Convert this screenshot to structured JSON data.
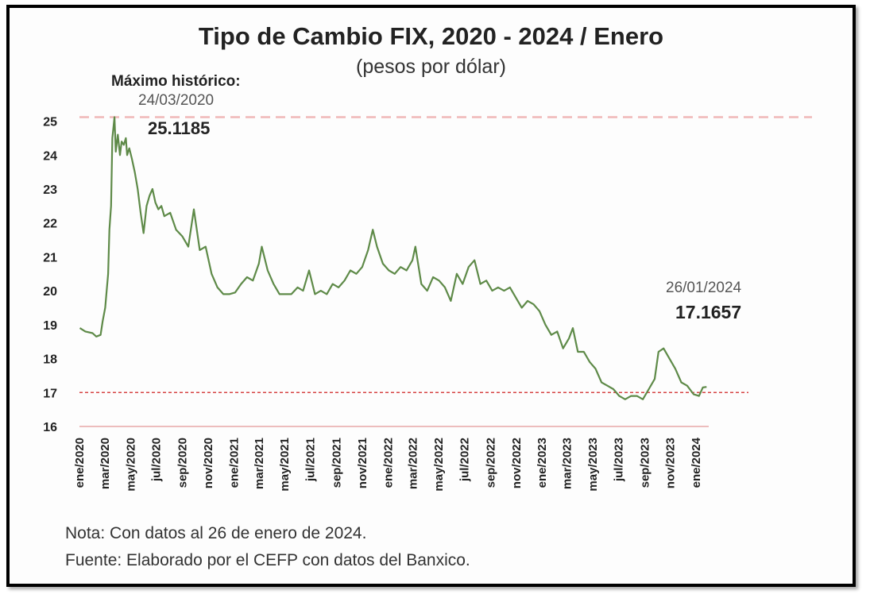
{
  "colors": {
    "line": "#5e8a48",
    "ref_line_max": "#f0b8b8",
    "ref_line_last": "#d64545",
    "baseline": "#e8a8a8"
  },
  "chart_data": {
    "type": "line",
    "title": "Tipo de Cambio FIX, 2020 - 2024 / Enero",
    "subtitle": "(pesos por dólar)",
    "ylim": [
      16,
      25.2
    ],
    "yticks": [
      16,
      17,
      18,
      19,
      20,
      21,
      22,
      23,
      24,
      25
    ],
    "x_range": [
      "2020-01-01",
      "2024-01-31"
    ],
    "xtick_labels": [
      "ene/2020",
      "mar/2020",
      "may/2020",
      "jul/2020",
      "sep/2020",
      "nov/2020",
      "ene/2021",
      "mar/2021",
      "may/2021",
      "jul/2021",
      "sep/2021",
      "nov/2021",
      "ene/2022",
      "mar/2022",
      "may/2022",
      "jul/2022",
      "sep/2022",
      "nov/2022",
      "ene/2023",
      "mar/2023",
      "may/2023",
      "jul/2023",
      "sep/2023",
      "nov/2023",
      "ene/2024"
    ],
    "xtick_dates": [
      "2020-01-01",
      "2020-03-01",
      "2020-05-01",
      "2020-07-01",
      "2020-09-01",
      "2020-11-01",
      "2021-01-01",
      "2021-03-01",
      "2021-05-01",
      "2021-07-01",
      "2021-09-01",
      "2021-11-01",
      "2022-01-01",
      "2022-03-01",
      "2022-05-01",
      "2022-07-01",
      "2022-09-01",
      "2022-11-01",
      "2023-01-01",
      "2023-03-01",
      "2023-05-01",
      "2023-07-01",
      "2023-09-01",
      "2023-11-01",
      "2024-01-01"
    ],
    "grid": false,
    "reference_lines": [
      {
        "y": 25.1185
      },
      {
        "y": 17.0
      }
    ],
    "series": [
      {
        "x": [
          "2020-01-02",
          "2020-01-15",
          "2020-02-01",
          "2020-02-10",
          "2020-02-20",
          "2020-02-25",
          "2020-03-02",
          "2020-03-09",
          "2020-03-12",
          "2020-03-16",
          "2020-03-19",
          "2020-03-24",
          "2020-03-27",
          "2020-04-01",
          "2020-04-06",
          "2020-04-10",
          "2020-04-15",
          "2020-04-20",
          "2020-04-23",
          "2020-04-28",
          "2020-05-04",
          "2020-05-11",
          "2020-05-18",
          "2020-05-25",
          "2020-06-01",
          "2020-06-08",
          "2020-06-15",
          "2020-06-22",
          "2020-06-29",
          "2020-07-06",
          "2020-07-13",
          "2020-07-20",
          "2020-08-03",
          "2020-08-17",
          "2020-09-01",
          "2020-09-15",
          "2020-09-28",
          "2020-10-12",
          "2020-10-26",
          "2020-11-09",
          "2020-11-23",
          "2020-12-07",
          "2020-12-21",
          "2021-01-04",
          "2021-01-18",
          "2021-02-01",
          "2021-02-15",
          "2021-03-01",
          "2021-03-08",
          "2021-03-22",
          "2021-04-05",
          "2021-04-19",
          "2021-05-03",
          "2021-05-17",
          "2021-06-01",
          "2021-06-14",
          "2021-06-28",
          "2021-07-12",
          "2021-07-26",
          "2021-08-09",
          "2021-08-23",
          "2021-09-06",
          "2021-09-20",
          "2021-10-04",
          "2021-10-18",
          "2021-11-01",
          "2021-11-15",
          "2021-11-26",
          "2021-12-06",
          "2021-12-20",
          "2022-01-03",
          "2022-01-17",
          "2022-01-31",
          "2022-02-14",
          "2022-02-28",
          "2022-03-07",
          "2022-03-21",
          "2022-04-04",
          "2022-04-18",
          "2022-05-02",
          "2022-05-16",
          "2022-05-30",
          "2022-06-13",
          "2022-06-27",
          "2022-07-11",
          "2022-07-25",
          "2022-08-08",
          "2022-08-22",
          "2022-09-05",
          "2022-09-19",
          "2022-10-03",
          "2022-10-17",
          "2022-10-31",
          "2022-11-14",
          "2022-11-28",
          "2022-12-12",
          "2022-12-26",
          "2023-01-09",
          "2023-01-23",
          "2023-02-06",
          "2023-02-20",
          "2023-03-06",
          "2023-03-15",
          "2023-03-27",
          "2023-04-10",
          "2023-04-24",
          "2023-05-08",
          "2023-05-22",
          "2023-06-05",
          "2023-06-19",
          "2023-07-03",
          "2023-07-17",
          "2023-07-31",
          "2023-08-14",
          "2023-08-28",
          "2023-09-11",
          "2023-09-25",
          "2023-10-04",
          "2023-10-16",
          "2023-10-30",
          "2023-11-13",
          "2023-11-27",
          "2023-12-11",
          "2023-12-26",
          "2024-01-08",
          "2024-01-17",
          "2024-01-26"
        ],
        "y": [
          18.9,
          18.8,
          18.75,
          18.65,
          18.7,
          19.1,
          19.5,
          20.5,
          21.8,
          22.5,
          24.5,
          25.1185,
          24.1,
          24.6,
          24.0,
          24.4,
          24.3,
          24.5,
          24.0,
          24.2,
          23.9,
          23.5,
          23.0,
          22.3,
          21.7,
          22.5,
          22.8,
          23.0,
          22.6,
          22.4,
          22.5,
          22.2,
          22.3,
          21.8,
          21.6,
          21.3,
          22.4,
          21.2,
          21.3,
          20.5,
          20.1,
          19.9,
          19.9,
          19.95,
          20.2,
          20.4,
          20.3,
          20.8,
          21.3,
          20.6,
          20.2,
          19.9,
          19.9,
          19.9,
          20.1,
          20.0,
          20.6,
          19.9,
          20.0,
          19.9,
          20.2,
          20.1,
          20.3,
          20.6,
          20.5,
          20.7,
          21.2,
          21.8,
          21.3,
          20.8,
          20.6,
          20.5,
          20.7,
          20.6,
          20.9,
          21.3,
          20.2,
          20.0,
          20.4,
          20.3,
          20.1,
          19.7,
          20.5,
          20.2,
          20.7,
          20.9,
          20.2,
          20.3,
          20.0,
          20.1,
          20.0,
          20.1,
          19.8,
          19.5,
          19.7,
          19.6,
          19.4,
          19.0,
          18.7,
          18.8,
          18.3,
          18.6,
          18.9,
          18.2,
          18.2,
          17.9,
          17.7,
          17.3,
          17.2,
          17.1,
          16.9,
          16.8,
          16.9,
          16.9,
          16.8,
          17.1,
          17.4,
          18.2,
          18.3,
          18.0,
          17.7,
          17.3,
          17.2,
          16.95,
          16.9,
          17.15,
          17.1657
        ]
      }
    ],
    "annotations": {
      "max_label": "Máximo histórico:",
      "max_date": "24/03/2020",
      "max_value": "25.1185",
      "last_date": "26/01/2024",
      "last_value": "17.1657"
    }
  },
  "notes": {
    "nota": "Nota: Con datos al 26 de enero de 2024.",
    "fuente": "Fuente: Elaborado por el CEFP con datos del Banxico."
  }
}
